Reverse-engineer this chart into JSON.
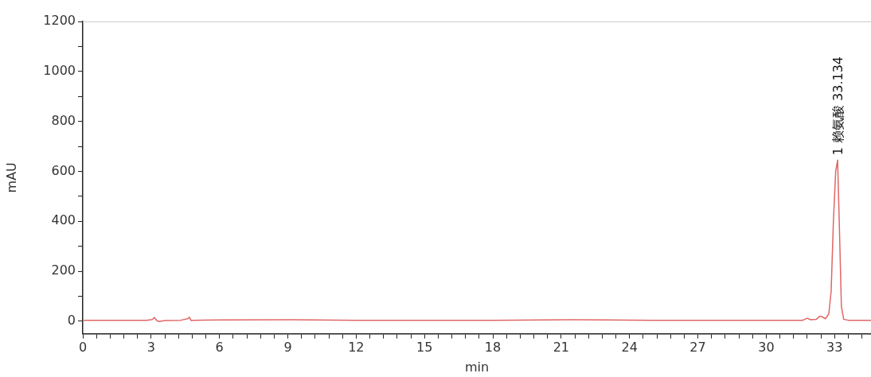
{
  "chart_data": {
    "type": "line",
    "xlabel": "min",
    "ylabel": "mAU",
    "xlim": [
      0,
      34.6
    ],
    "ylim": [
      -50,
      1200
    ],
    "xticks": [
      0,
      {
        "value": 0.6,
        "label": null
      },
      {
        "value": 1.2,
        "label": null
      },
      {
        "value": 1.8,
        "label": null
      },
      {
        "value": 2.4,
        "label": null
      },
      3,
      {
        "value": 3.6,
        "label": null
      },
      {
        "value": 4.2,
        "label": null
      },
      {
        "value": 4.8,
        "label": null
      },
      {
        "value": 5.4,
        "label": null
      },
      6,
      {
        "value": 6.6,
        "label": null
      },
      {
        "value": 7.2,
        "label": null
      },
      {
        "value": 7.8,
        "label": null
      },
      {
        "value": 8.4,
        "label": null
      },
      9,
      {
        "value": 9.6,
        "label": null
      },
      {
        "value": 10.2,
        "label": null
      },
      {
        "value": 10.8,
        "label": null
      },
      {
        "value": 11.4,
        "label": null
      },
      12,
      {
        "value": 12.6,
        "label": null
      },
      {
        "value": 13.2,
        "label": null
      },
      {
        "value": 13.8,
        "label": null
      },
      {
        "value": 14.4,
        "label": null
      },
      15,
      {
        "value": 15.6,
        "label": null
      },
      {
        "value": 16.2,
        "label": null
      },
      {
        "value": 16.8,
        "label": null
      },
      {
        "value": 17.4,
        "label": null
      },
      18,
      {
        "value": 18.6,
        "label": null
      },
      {
        "value": 19.2,
        "label": null
      },
      {
        "value": 19.8,
        "label": null
      },
      {
        "value": 20.4,
        "label": null
      },
      21,
      {
        "value": 21.6,
        "label": null
      },
      {
        "value": 22.2,
        "label": null
      },
      {
        "value": 22.8,
        "label": null
      },
      {
        "value": 23.4,
        "label": null
      },
      24,
      {
        "value": 24.6,
        "label": null
      },
      {
        "value": 25.2,
        "label": null
      },
      {
        "value": 25.8,
        "label": null
      },
      {
        "value": 26.4,
        "label": null
      },
      27,
      {
        "value": 27.6,
        "label": null
      },
      {
        "value": 28.2,
        "label": null
      },
      {
        "value": 28.8,
        "label": null
      },
      {
        "value": 29.4,
        "label": null
      },
      30,
      {
        "value": 30.6,
        "label": null
      },
      {
        "value": 31.2,
        "label": null
      },
      {
        "value": 31.8,
        "label": null
      },
      {
        "value": 32.4,
        "label": null
      },
      33,
      {
        "value": 33.6,
        "label": null
      },
      {
        "value": 34.2,
        "label": null
      }
    ],
    "yticks": [
      0,
      {
        "value": 100,
        "label": null
      },
      200,
      {
        "value": 300,
        "label": null
      },
      400,
      {
        "value": 500,
        "label": null
      },
      600,
      {
        "value": 700,
        "label": null
      },
      800,
      {
        "value": 900,
        "label": null
      },
      1000,
      {
        "value": 1100,
        "label": null
      },
      1200
    ],
    "marker": "none",
    "line_style": "solid",
    "legend": false,
    "grid": false,
    "annotations": [
      {
        "text": "1 赖氨酸 33.134",
        "x": 33.134,
        "y": 645
      }
    ],
    "series": [
      {
        "color": "#e06666",
        "x": [
          0,
          2.8,
          3.05,
          3.15,
          3.25,
          3.35,
          3.6,
          4.3,
          4.6,
          4.68,
          4.75,
          4.85,
          6.1,
          9.2,
          12,
          18,
          21.4,
          25,
          30,
          31.6,
          31.8,
          31.95,
          32.2,
          32.35,
          32.45,
          32.6,
          32.75,
          32.85,
          32.95,
          33.05,
          33.134,
          33.22,
          33.3,
          33.4,
          33.6,
          34.6
        ],
        "values": [
          4,
          4,
          7,
          15,
          2,
          -1,
          3,
          4,
          10,
          16,
          3,
          4,
          5,
          6,
          4,
          4,
          6,
          4,
          4,
          4,
          12,
          6,
          8,
          20,
          18,
          10,
          30,
          120,
          400,
          600,
          645,
          350,
          60,
          8,
          4,
          4
        ]
      }
    ]
  }
}
